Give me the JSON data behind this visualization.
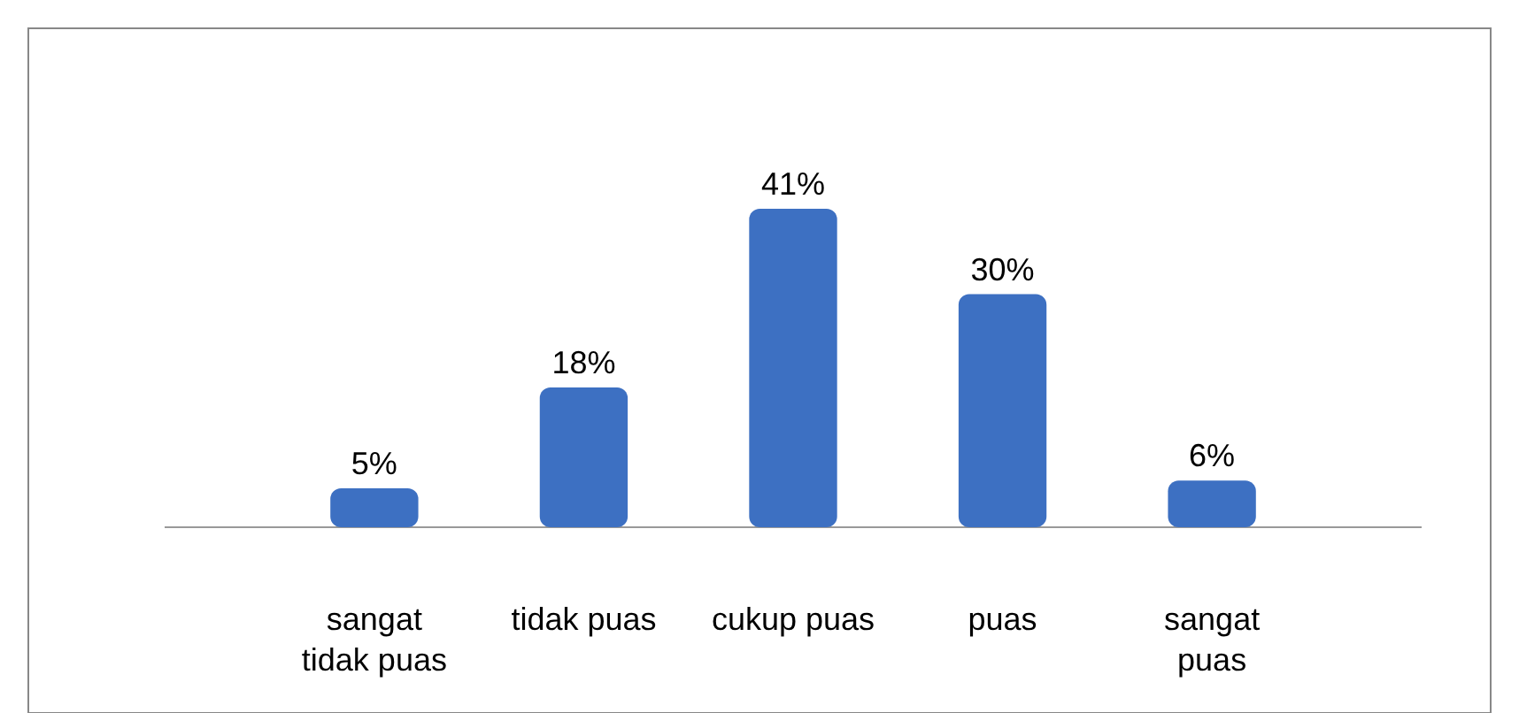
{
  "chart_data": {
    "type": "bar",
    "categories": [
      "sangat tidak puas",
      "tidak puas",
      "cukup puas",
      "puas",
      "sangat puas"
    ],
    "values": [
      5,
      18,
      41,
      30,
      6
    ],
    "value_labels": [
      "5%",
      "18%",
      "41%",
      "30%",
      "6%"
    ],
    "color": "#3d70c2"
  }
}
